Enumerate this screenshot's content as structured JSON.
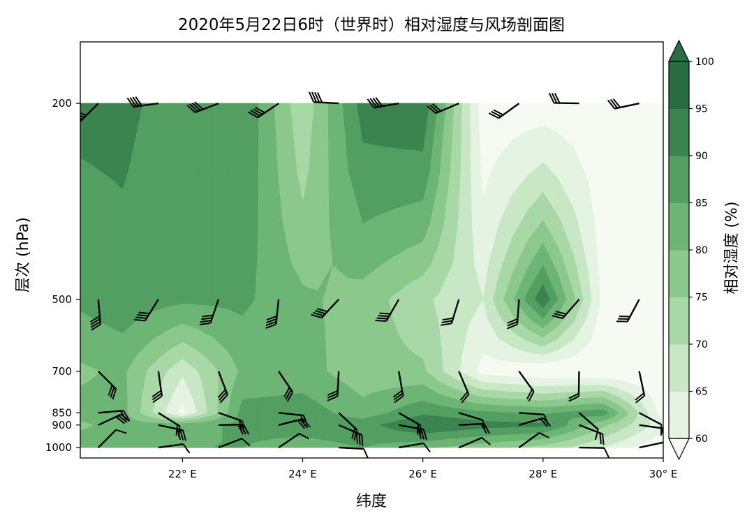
{
  "chart_data": {
    "type": "heatmap",
    "title": "2020年5月22日6时（世界时）相对湿度与风场剖面图",
    "xlabel": "纬度",
    "ylabel": "层次 (hPa)",
    "colorbar_label": "相对湿度 (%)",
    "x_ticks": [
      22,
      24,
      26,
      28,
      30
    ],
    "x_tick_labels": [
      "22° E",
      "24° E",
      "26° E",
      "28° E",
      "30° E"
    ],
    "xlim": [
      20.3,
      30
    ],
    "y_ticks": [
      200,
      500,
      700,
      850,
      900,
      1000
    ],
    "y_tick_labels": [
      "200",
      "500",
      "700",
      "850",
      "900",
      "1000"
    ],
    "ylim_hpa": [
      1050,
      150
    ],
    "levels": [
      60,
      65,
      70,
      75,
      80,
      85,
      90,
      95,
      100
    ],
    "level_colors": [
      "#f5fbf3",
      "#e5f4e2",
      "#c8e7c4",
      "#a8d8a5",
      "#8bc88c",
      "#6db574",
      "#539f61",
      "#3b8450",
      "#2a6c41"
    ],
    "colorbar_ticks": [
      "60",
      "65",
      "70",
      "75",
      "80",
      "85",
      "90",
      "95",
      "100"
    ],
    "data_x": [
      20.3,
      21,
      22,
      23,
      24,
      25,
      26,
      27,
      28,
      29,
      30
    ],
    "data_y": [
      200,
      500,
      700,
      850,
      900,
      1000
    ],
    "data_rh": [
      [
        96,
        96,
        93,
        95,
        76,
        97,
        99,
        62,
        62,
        62,
        62
      ],
      [
        91,
        93,
        91,
        91,
        86,
        83,
        76,
        70,
        99,
        63,
        62
      ],
      [
        84,
        86,
        71,
        86,
        87,
        82,
        81,
        63,
        60,
        60,
        60
      ],
      [
        87,
        87,
        63,
        92,
        93,
        87,
        94,
        91,
        89,
        93,
        62
      ],
      [
        84,
        87,
        88,
        91,
        92,
        93,
        100,
        97,
        96,
        81,
        67
      ],
      [
        88,
        88,
        90,
        90,
        88,
        90,
        86,
        82,
        78,
        70,
        60
      ]
    ],
    "wind_x": [
      20.6,
      21.6,
      22.6,
      23.6,
      24.6,
      25.6,
      26.6,
      27.6,
      28.6,
      29.6
    ],
    "wind_levels": [
      200,
      500,
      700,
      850,
      900,
      1000
    ]
  }
}
